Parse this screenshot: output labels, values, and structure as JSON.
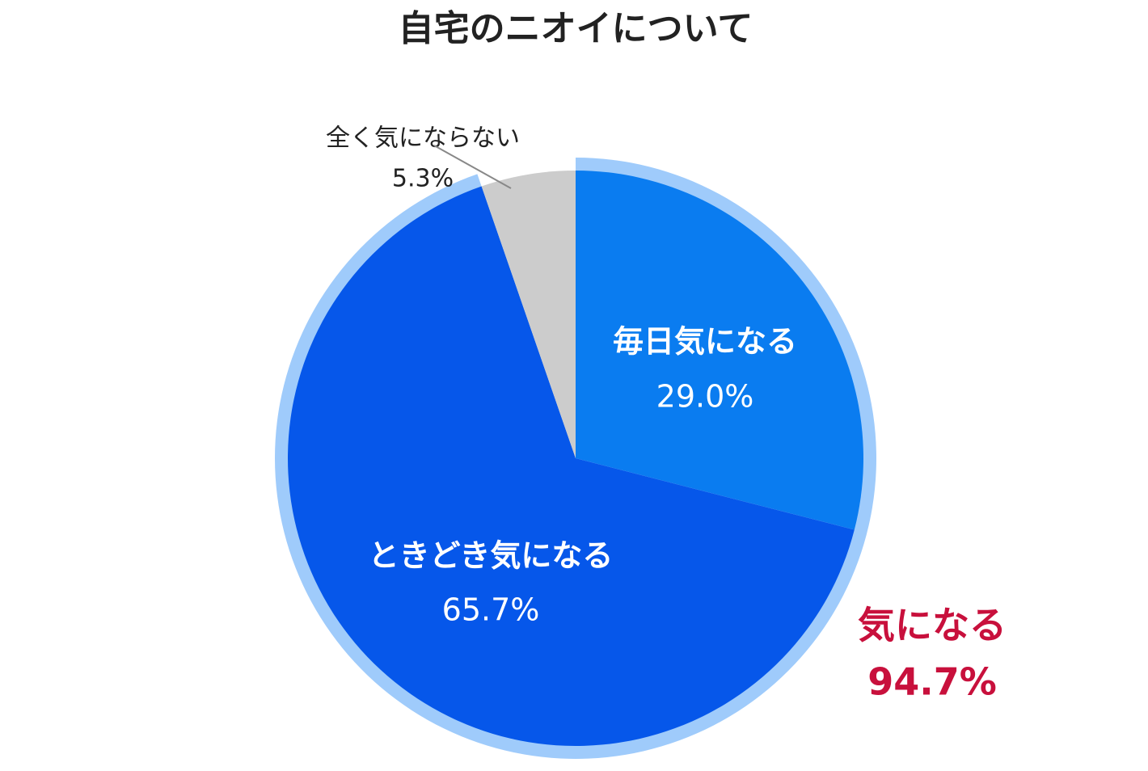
{
  "chart_data": {
    "type": "pie",
    "title": "自宅のニオイについて",
    "categories": [
      "毎日気になる",
      "ときどき気になる",
      "全く気にならない"
    ],
    "values": [
      29.0,
      65.7,
      5.3
    ],
    "value_labels": [
      "29.0%",
      "65.7%",
      "5.3%"
    ],
    "colors": [
      "#0a7cf0",
      "#0657ea",
      "#cccccc"
    ],
    "group": {
      "label": "気になる",
      "value": 94.7,
      "value_label": "94.7%",
      "color": "#9fcbfb"
    }
  }
}
